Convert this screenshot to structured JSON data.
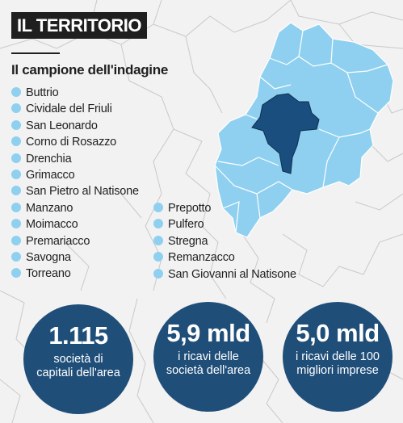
{
  "title": "IL TERRITORIO",
  "subtitle": "Il campione dell'indagine",
  "colors": {
    "area": "#8fd0f0",
    "highlight": "#1a4e7e",
    "circle": "#1f4e79",
    "background": "#f2f2f2"
  },
  "municipalities_left": [
    "Buttrio",
    "Cividale del Friuli",
    "San Leonardo",
    "Corno di Rosazzo",
    "Drenchia",
    "Grimacco",
    "San Pietro al Natisone",
    "Manzano",
    "Moimacco",
    "Premariacco",
    "Savogna",
    "Torreano"
  ],
  "municipalities_right": [
    "Prepotto",
    "Pulfero",
    "Stregna",
    "Remanzacco",
    "San Giovanni al Natisone"
  ],
  "stats": [
    {
      "value": "1.115",
      "label": "società di capitali dell'area"
    },
    {
      "value": "5,9 mld",
      "label": "i ricavi delle società dell'area"
    },
    {
      "value": "5,0 mld",
      "label": "i ricavi delle 100 migliori imprese"
    }
  ]
}
